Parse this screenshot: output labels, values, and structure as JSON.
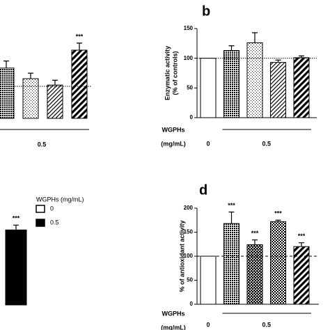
{
  "chart_data": [
    {
      "type": "bar",
      "categories": [
        "0.5",
        "0.5",
        "0.5",
        "0.5"
      ],
      "values": [
        157,
        124,
        104,
        213
      ],
      "errors": [
        22,
        17,
        15,
        22
      ],
      "significance": [
        null,
        null,
        null,
        "***"
      ],
      "patterns": [
        "dots-dense",
        "dots-sparse",
        "hatch-light",
        "hatch-heavy"
      ],
      "ylim": [
        0,
        250
      ],
      "reference": 100,
      "reference_style": "dotted"
    },
    {
      "type": "bar",
      "title": "b",
      "ylabel": [
        "Enzymatic activity",
        "(% of controls)"
      ],
      "xlabel": [
        "WGPHs",
        "(mg/mL)"
      ],
      "categories": [
        "0",
        "0.5",
        "0.5",
        "0.5",
        "0.5"
      ],
      "values": [
        100,
        113,
        126,
        93,
        101
      ],
      "errors": [
        0,
        8,
        17,
        4,
        3
      ],
      "significance": [
        null,
        null,
        null,
        null,
        null
      ],
      "patterns": [
        "none",
        "dots-dense",
        "dots-sparse",
        "hatch-light",
        "hatch-heavy"
      ],
      "ylim": [
        0,
        150
      ],
      "yticks": [
        0,
        50,
        100,
        150
      ],
      "reference": 100,
      "reference_style": "dotted"
    },
    {
      "type": "bar",
      "values": [
        155
      ],
      "errors": [
        10
      ],
      "significance": [
        "***"
      ],
      "patterns": [
        "solid"
      ],
      "ylim": [
        0,
        200
      ],
      "legend": {
        "title": "WGPHs (mg/mL)",
        "entries": [
          {
            "label": "0",
            "pattern": "none"
          },
          {
            "label": "0.5",
            "pattern": "solid"
          }
        ]
      }
    },
    {
      "type": "bar",
      "title": "d",
      "ylabel": [
        "% of antioxidant activity"
      ],
      "xlabel": [
        "WGPHs",
        "(mg/mL)"
      ],
      "categories": [
        "0",
        "0.5",
        "0.5",
        "0.5",
        "0.5"
      ],
      "values": [
        100,
        168,
        124,
        172,
        120
      ],
      "errors": [
        0,
        24,
        10,
        3,
        8
      ],
      "significance": [
        null,
        "***",
        "***",
        "***",
        "***"
      ],
      "patterns": [
        "none",
        "dots-dense",
        "checker-dark",
        "checker",
        "hatch-heavy"
      ],
      "ylim": [
        0,
        200
      ],
      "yticks": [
        0,
        50,
        100,
        150,
        200
      ],
      "reference": 100,
      "reference_style": "dashed"
    }
  ]
}
